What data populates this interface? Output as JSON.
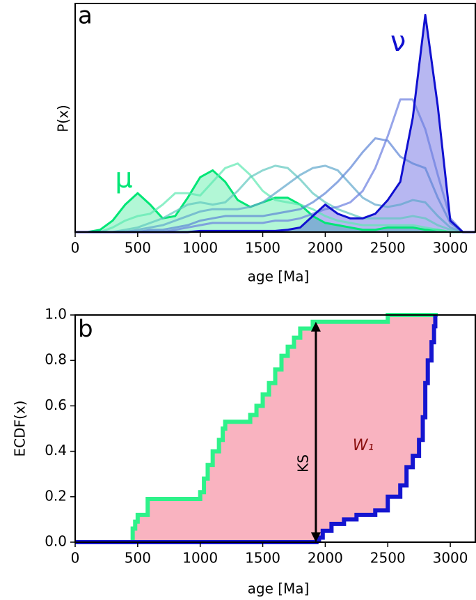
{
  "chart_data": [
    {
      "type": "line",
      "panel_label": "a",
      "xlabel": "age [Ma]",
      "ylabel": "P(x)",
      "xlim": [
        0,
        3200
      ],
      "ylim": [
        0,
        1
      ],
      "xticks": [
        0,
        500,
        1000,
        1500,
        2000,
        2500,
        3000
      ],
      "fill_opacity": 0.3,
      "x": [
        0,
        100,
        200,
        300,
        400,
        500,
        600,
        700,
        800,
        900,
        1000,
        1100,
        1200,
        1300,
        1400,
        1500,
        1600,
        1700,
        1800,
        1900,
        2000,
        2100,
        2200,
        2300,
        2400,
        2500,
        2600,
        2700,
        2800,
        2900,
        3000,
        3100,
        3200
      ],
      "series": [
        {
          "name": "μ",
          "color": "#00e676",
          "fill": true,
          "values": [
            0,
            0,
            0.01,
            0.05,
            0.12,
            0.17,
            0.12,
            0.06,
            0.07,
            0.15,
            0.24,
            0.27,
            0.22,
            0.14,
            0.11,
            0.13,
            0.15,
            0.15,
            0.12,
            0.07,
            0.04,
            0.03,
            0.02,
            0.01,
            0.01,
            0.02,
            0.02,
            0.02,
            0.01,
            0.01,
            0,
            0,
            0
          ]
        },
        {
          "color": "#5ce8b0",
          "values": [
            0,
            0,
            0,
            0.02,
            0.05,
            0.07,
            0.08,
            0.12,
            0.17,
            0.17,
            0.16,
            0.22,
            0.28,
            0.3,
            0.25,
            0.18,
            0.14,
            0.13,
            0.12,
            0.1,
            0.07,
            0.05,
            0.04,
            0.03,
            0.03,
            0.03,
            0.03,
            0.03,
            0.02,
            0.01,
            0,
            0,
            0
          ]
        },
        {
          "color": "#5fc8bf",
          "values": [
            0,
            0,
            0,
            0,
            0.01,
            0.02,
            0.04,
            0.06,
            0.09,
            0.12,
            0.13,
            0.12,
            0.13,
            0.18,
            0.24,
            0.27,
            0.29,
            0.28,
            0.23,
            0.17,
            0.13,
            0.1,
            0.08,
            0.06,
            0.06,
            0.06,
            0.06,
            0.07,
            0.06,
            0.03,
            0.01,
            0,
            0
          ]
        },
        {
          "color": "#5fa6cc",
          "values": [
            0,
            0,
            0,
            0,
            0,
            0.01,
            0.02,
            0.03,
            0.05,
            0.07,
            0.09,
            0.1,
            0.1,
            0.1,
            0.11,
            0.13,
            0.17,
            0.21,
            0.25,
            0.28,
            0.29,
            0.27,
            0.21,
            0.15,
            0.12,
            0.11,
            0.12,
            0.14,
            0.13,
            0.07,
            0.02,
            0,
            0
          ]
        },
        {
          "color": "#5d85d6",
          "values": [
            0,
            0,
            0,
            0,
            0,
            0,
            0.01,
            0.01,
            0.02,
            0.03,
            0.05,
            0.06,
            0.07,
            0.07,
            0.07,
            0.07,
            0.08,
            0.09,
            0.1,
            0.13,
            0.17,
            0.22,
            0.28,
            0.35,
            0.41,
            0.4,
            0.33,
            0.3,
            0.28,
            0.15,
            0.04,
            0,
            0
          ]
        },
        {
          "color": "#6a7de0",
          "values": [
            0,
            0,
            0,
            0,
            0,
            0,
            0,
            0,
            0.01,
            0.02,
            0.03,
            0.04,
            0.04,
            0.04,
            0.04,
            0.04,
            0.05,
            0.05,
            0.06,
            0.08,
            0.1,
            0.11,
            0.13,
            0.18,
            0.28,
            0.42,
            0.58,
            0.58,
            0.45,
            0.25,
            0.06,
            0,
            0
          ]
        },
        {
          "name": "ν",
          "color": "#1010d0",
          "fill": true,
          "values": [
            0,
            0,
            0,
            0,
            0,
            0,
            0,
            0,
            0,
            0,
            0.005,
            0.005,
            0.005,
            0.005,
            0.005,
            0.005,
            0.005,
            0.01,
            0.02,
            0.07,
            0.12,
            0.08,
            0.06,
            0.06,
            0.08,
            0.14,
            0.22,
            0.5,
            0.95,
            0.55,
            0.05,
            0,
            0
          ]
        }
      ]
    },
    {
      "type": "ecdf",
      "panel_label": "b",
      "xlabel": "age [Ma]",
      "ylabel": "ECDF(x)",
      "xlim": [
        0,
        3200
      ],
      "ylim": [
        0,
        1
      ],
      "xticks": [
        0,
        500,
        1000,
        1500,
        2000,
        2500,
        3000
      ],
      "yticks": [
        {
          "value": 0,
          "label": "0.0"
        },
        0.2,
        0.4,
        0.6,
        0.8,
        {
          "value": 1,
          "label": "1.0"
        }
      ],
      "fill_between": "#f9b3c0",
      "area_label": "W₁",
      "area_label_color": "#8b1010",
      "ks": {
        "label": "KS",
        "x": 1925,
        "from": 0,
        "to": 0.97
      },
      "series": [
        {
          "color": "#2ef28a",
          "x": [
            0,
            460,
            480,
            500,
            580,
            1000,
            1030,
            1060,
            1100,
            1150,
            1180,
            1200,
            1400,
            1450,
            1500,
            1550,
            1600,
            1650,
            1700,
            1750,
            1800,
            1900,
            2500,
            2900
          ],
          "values": [
            0,
            0.06,
            0.09,
            0.12,
            0.19,
            0.22,
            0.28,
            0.34,
            0.4,
            0.45,
            0.5,
            0.53,
            0.56,
            0.6,
            0.65,
            0.7,
            0.76,
            0.82,
            0.86,
            0.9,
            0.94,
            0.97,
            1,
            1
          ]
        },
        {
          "color": "#1515d0",
          "x": [
            0,
            1930,
            1950,
            1980,
            2050,
            2150,
            2250,
            2400,
            2500,
            2600,
            2650,
            2700,
            2750,
            2780,
            2800,
            2820,
            2850,
            2870,
            2880
          ],
          "values": [
            0,
            0.01,
            0.02,
            0.05,
            0.08,
            0.1,
            0.12,
            0.14,
            0.2,
            0.25,
            0.33,
            0.38,
            0.45,
            0.55,
            0.7,
            0.8,
            0.88,
            0.95,
            1
          ]
        }
      ]
    }
  ]
}
